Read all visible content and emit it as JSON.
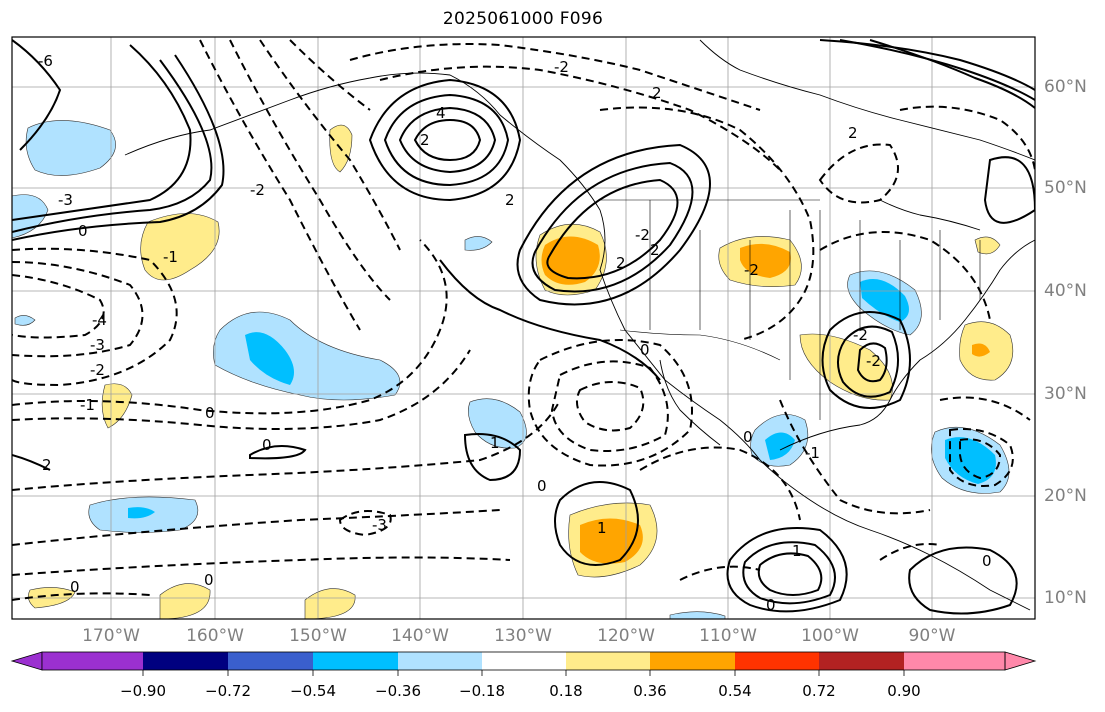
{
  "title": "2025061000 F096",
  "map": {
    "region": "North Pacific / North America",
    "gridlines": true,
    "lat_labels": [
      "60°N",
      "50°N",
      "40°N",
      "30°N",
      "20°N",
      "10°N"
    ],
    "lon_labels": [
      "170°W",
      "160°W",
      "150°W",
      "140°W",
      "130°W",
      "120°W",
      "110°W",
      "100°W",
      "90°W"
    ],
    "contour_labels": [
      "-6",
      "-4",
      "-3",
      "-2",
      "-2",
      "-1",
      "0",
      "0",
      "0",
      "0",
      "-3",
      "4",
      "2",
      "-2",
      "2",
      "2",
      "2",
      "-2",
      "2",
      "-1",
      "0",
      "2",
      "-2",
      "0",
      "1",
      "1",
      "0",
      "0",
      "-1",
      "2",
      "1",
      "-2",
      "-3",
      "-2",
      "0"
    ]
  },
  "colorbar": {
    "ticks": [
      "−0.90",
      "−0.72",
      "−0.54",
      "−0.36",
      "−0.18",
      "0.18",
      "0.36",
      "0.54",
      "0.72",
      "0.90"
    ],
    "colors": [
      "#9b30d0",
      "#000080",
      "#3a5fcd",
      "#00bfff",
      "#b0e2ff",
      "#ffffff",
      "#ffec8b",
      "#ffa500",
      "#ff3300",
      "#b22222",
      "#ff88aa"
    ]
  },
  "shading_colors": {
    "light_blue": "#b0e2ff",
    "blue": "#00bfff",
    "light_yellow": "#ffec8b",
    "orange": "#ffa500"
  }
}
